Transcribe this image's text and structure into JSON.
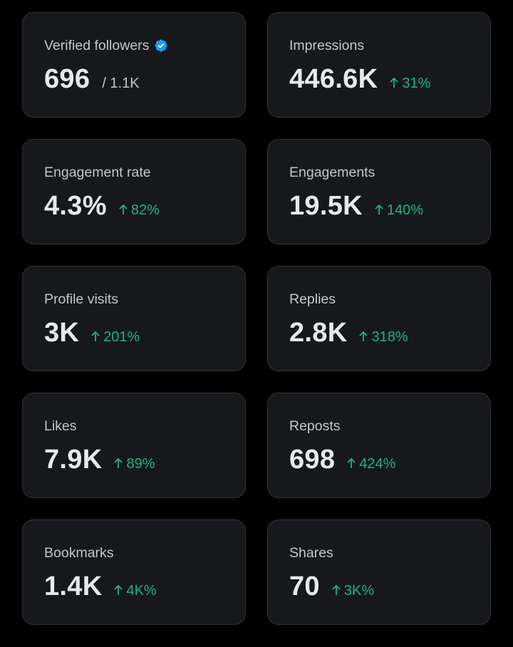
{
  "colors": {
    "background": "#000000",
    "card": "#16181c",
    "card_border": "#2f3336",
    "positive": "#21b57a",
    "verified": "#1d9bf0"
  },
  "cards": [
    {
      "label": "Verified followers",
      "value": "696",
      "suffix": "/ 1.1K",
      "icon": "verified-badge-icon"
    },
    {
      "label": "Impressions",
      "value": "446.6K",
      "change": "31%",
      "icon": "arrow-up-icon"
    },
    {
      "label": "Engagement rate",
      "value": "4.3%",
      "change": "82%",
      "icon": "arrow-up-icon"
    },
    {
      "label": "Engagements",
      "value": "19.5K",
      "change": "140%",
      "icon": "arrow-up-icon"
    },
    {
      "label": "Profile visits",
      "value": "3K",
      "change": "201%",
      "icon": "arrow-up-icon"
    },
    {
      "label": "Replies",
      "value": "2.8K",
      "change": "318%",
      "icon": "arrow-up-icon"
    },
    {
      "label": "Likes",
      "value": "7.9K",
      "change": "89%",
      "icon": "arrow-up-icon"
    },
    {
      "label": "Reposts",
      "value": "698",
      "change": "424%",
      "icon": "arrow-up-icon"
    },
    {
      "label": "Bookmarks",
      "value": "1.4K",
      "change": "4K%",
      "icon": "arrow-up-icon"
    },
    {
      "label": "Shares",
      "value": "70",
      "change": "3K%",
      "icon": "arrow-up-icon"
    }
  ]
}
